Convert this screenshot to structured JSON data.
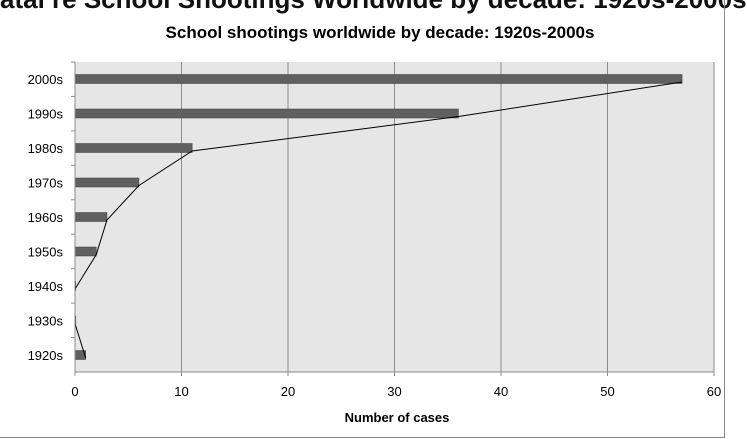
{
  "page": {
    "clipped_header": "atal re School Shootings Worldwide by decade: 1920s-2000s"
  },
  "colors": {
    "plot_bg": "#e6e6e6",
    "bar": "#606060",
    "grid": "#8c8c8c",
    "line": "#000000"
  },
  "chart_data": {
    "type": "bar",
    "orientation": "horizontal",
    "title": "School shootings worldwide by decade: 1920s-2000s",
    "xlabel": "Number of cases",
    "ylabel": "",
    "categories": [
      "2000s",
      "1990s",
      "1980s",
      "1970s",
      "1960s",
      "1950s",
      "1940s",
      "1930s",
      "1920s"
    ],
    "values": [
      57,
      36,
      11,
      6,
      3,
      2,
      0,
      0,
      1
    ],
    "xlim": [
      0,
      60
    ],
    "xticks": [
      "0",
      "10",
      "20",
      "30",
      "40",
      "50",
      "60"
    ],
    "grid": "vertical",
    "overlay_line": true,
    "legend": "none"
  }
}
